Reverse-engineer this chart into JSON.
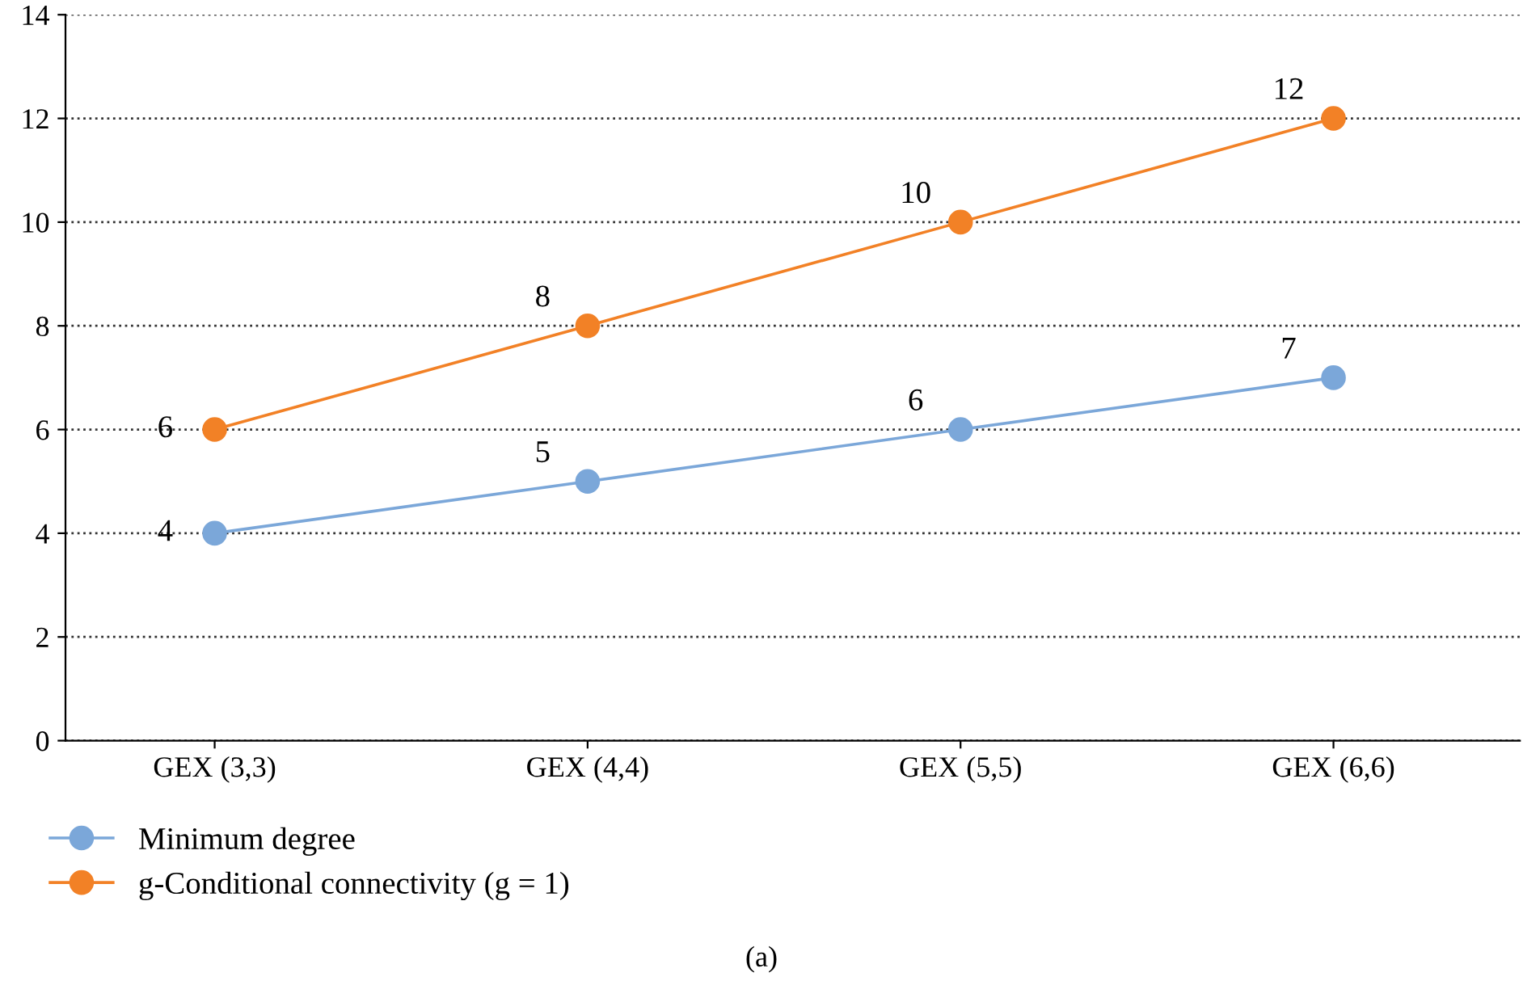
{
  "chart_data": {
    "type": "line",
    "categories": [
      "GEX (3,3)",
      "GEX (4,4)",
      "GEX (5,5)",
      "GEX (6,6)"
    ],
    "series": [
      {
        "name": "Minimum degree",
        "color": "#7ba7d9",
        "values": [
          4,
          5,
          6,
          7
        ]
      },
      {
        "name": "g-Conditional connectivity (g = 1)",
        "color": "#f28126",
        "values": [
          6,
          8,
          10,
          12
        ]
      }
    ],
    "ylim": [
      0,
      14
    ],
    "yticks": [
      0,
      2,
      4,
      6,
      8,
      10,
      12,
      14
    ],
    "grid": "y",
    "legend": "bottom left",
    "marker": "circle",
    "line_style": "solid",
    "data_labels": true,
    "annotations": [
      "(a)"
    ]
  }
}
